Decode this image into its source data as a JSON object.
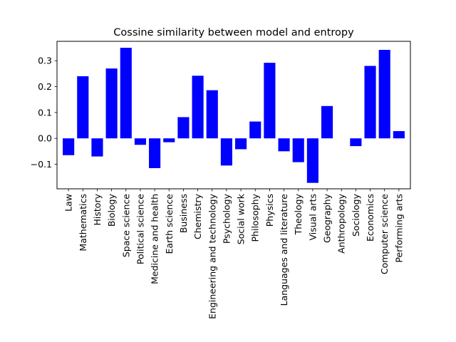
{
  "chart_data": {
    "type": "bar",
    "title": "Cossine similarity between model and entropy",
    "xlabel": "",
    "ylabel": "",
    "categories": [
      "Law",
      "Mathematics",
      "History",
      "Biology",
      "Space science",
      "Political science",
      "Medicine and health",
      "Earth science",
      "Business",
      "Chemistry",
      "Engineering and technology",
      "Psychology",
      "Social work",
      "Philosophy",
      "Physics",
      "Languages and literature",
      "Theology",
      "Visual arts",
      "Geography",
      "Anthropology",
      "Sociology",
      "Economics",
      "Computer science",
      "Performing arts"
    ],
    "values": [
      -0.065,
      0.24,
      -0.07,
      0.27,
      0.35,
      -0.025,
      -0.115,
      -0.015,
      0.082,
      0.242,
      0.186,
      -0.105,
      -0.042,
      0.065,
      0.292,
      -0.05,
      -0.092,
      -0.172,
      0.125,
      0.0,
      -0.03,
      0.28,
      0.342,
      0.028
    ],
    "ylim": [
      -0.195,
      0.375
    ],
    "yticks": [
      -0.1,
      0.0,
      0.1,
      0.2,
      0.3
    ],
    "ytick_labels": [
      "−0.1",
      "0.0",
      "0.1",
      "0.2",
      "0.3"
    ],
    "bar_color": "#0000ff",
    "grid": false,
    "legend": "none"
  }
}
